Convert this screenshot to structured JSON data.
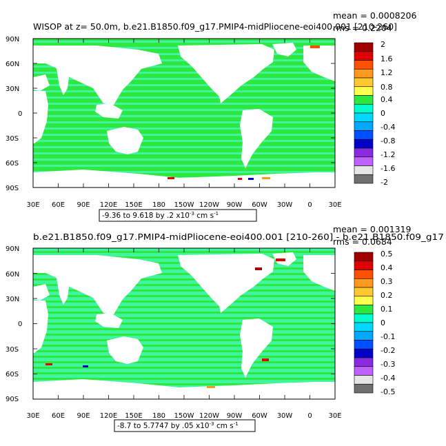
{
  "panels": [
    {
      "title": "WISOP at z=   50.0m, b.e21.B1850.f09_g17.PMIP4-midPliocene-eoi400.001 [210-260]",
      "mean_text": "mean = 0.0008206",
      "rms_text": "rms = 0.2204",
      "range_text": "-9.36 to 9.618 by .2 x10",
      "range_exp": "-3",
      "range_units": "cm s",
      "range_units_exp": "-1",
      "colorbar_labels": [
        "2",
        "1.6",
        "1.2",
        "0.8",
        "0.4",
        "0",
        "-0.4",
        "-0.8",
        "-1.2",
        "-1.6",
        "-2"
      ]
    },
    {
      "title": "b.e21.B1850.f09_g17.PMIP4-midPliocene-eoi400.001 [210-260] - b.e21.B1850.f09_g17",
      "mean_text": "mean = 0.001319",
      "rms_text": "rms = 0.0684",
      "range_text": "-8.7 to 5.7747 by .05 x10",
      "range_exp": "-3",
      "range_units": "cm s",
      "range_units_exp": "-1",
      "colorbar_labels": [
        "0.5",
        "0.4",
        "0.3",
        "0.2",
        "0.1",
        "0",
        "-0.1",
        "-0.2",
        "-0.3",
        "-0.4",
        "-0.5"
      ]
    }
  ],
  "axes": {
    "lat_labels": [
      "90N",
      "60N",
      "30N",
      "0",
      "30S",
      "60S",
      "90S"
    ],
    "lon_labels": [
      "30E",
      "60E",
      "90E",
      "120E",
      "150E",
      "180",
      "150W",
      "120W",
      "90W",
      "60W",
      "30W",
      "0",
      "30E"
    ]
  },
  "colors": {
    "colorbar": [
      "#a00000",
      "#e00000",
      "#ff5000",
      "#ff9a20",
      "#ffc830",
      "#ffff50",
      "#2ee840",
      "#00ffcc",
      "#00d8ff",
      "#00a8ff",
      "#0050ff",
      "#0000c8",
      "#8a2be2",
      "#c060ff",
      "#e6e6e6",
      "#707070"
    ],
    "ocean_base": "#2ee840",
    "ocean_alt": "#40f5a0",
    "land": "#ffffff"
  },
  "chart_data": [
    {
      "type": "heatmap",
      "title": "WISOP at z=   50.0m, b.e21.B1850.f09_g17.PMIP4-midPliocene-eoi400.001 [210-260]",
      "field": "WISOP",
      "depth_m": 50.0,
      "mean": 0.0008206,
      "rms": 0.2204,
      "min": -9.36,
      "max": 9.618,
      "contour_interval": 0.2,
      "scale": "x10^-3",
      "units": "cm s^-1",
      "colorbar_ticks": [
        2,
        1.6,
        1.2,
        0.8,
        0.4,
        0,
        -0.4,
        -0.8,
        -1.2,
        -1.6,
        -2
      ],
      "lon_range": [
        "30E",
        "30E"
      ],
      "lat_range": [
        "90S",
        "90N"
      ]
    },
    {
      "type": "heatmap",
      "title": "b.e21.B1850.f09_g17.PMIP4-midPliocene-eoi400.001 [210-260] - b.e21.B1850.f09_g17",
      "mean": 0.001319,
      "rms": 0.0684,
      "min": -8.7,
      "max": 5.7747,
      "contour_interval": 0.05,
      "scale": "x10^-3",
      "units": "cm s^-1",
      "colorbar_ticks": [
        0.5,
        0.4,
        0.3,
        0.2,
        0.1,
        0,
        -0.1,
        -0.2,
        -0.3,
        -0.4,
        -0.5
      ],
      "lon_range": [
        "30E",
        "30E"
      ],
      "lat_range": [
        "90S",
        "90N"
      ]
    }
  ]
}
